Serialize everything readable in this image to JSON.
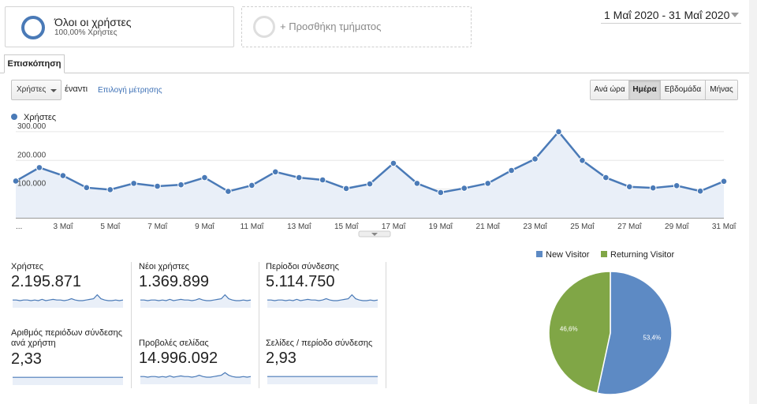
{
  "segments": {
    "active": {
      "title": "Όλοι οι χρήστες",
      "subtitle": "100,00% Χρήστες"
    },
    "add_label": "+ Προσθήκη τμήματος"
  },
  "date_range": "1 Μαΐ 2020 - 31 Μαΐ 2020",
  "tabs": [
    {
      "label": "Επισκόπηση"
    }
  ],
  "controls": {
    "metric_select": "Χρήστες",
    "versus": "έναντι",
    "pick_metric": "Επιλογή μέτρησης",
    "granularity": [
      {
        "label": "Ανά ώρα",
        "active": false
      },
      {
        "label": "Ημέρα",
        "active": true
      },
      {
        "label": "Εβδομάδα",
        "active": false
      },
      {
        "label": "Μήνας",
        "active": false
      }
    ]
  },
  "colors": {
    "accent": "#4a7ab7",
    "line": "#4a7ab7",
    "area": "#e9eff8",
    "new_visitor": "#5d8ac4",
    "returning_visitor": "#80a646"
  },
  "chart_data": [
    {
      "type": "area",
      "legend": "Χρήστες",
      "ylim": [
        0,
        330000
      ],
      "y_ticks": [
        100000,
        200000,
        300000
      ],
      "y_tick_labels": [
        "100.000",
        "200.000",
        "300.000"
      ],
      "x": [
        "1 Μαΐ",
        "2 Μαΐ",
        "3 Μαΐ",
        "4 Μαΐ",
        "5 Μαΐ",
        "6 Μαΐ",
        "7 Μαΐ",
        "8 Μαΐ",
        "9 Μαΐ",
        "10 Μαΐ",
        "11 Μαΐ",
        "12 Μαΐ",
        "13 Μαΐ",
        "14 Μαΐ",
        "15 Μαΐ",
        "16 Μαΐ",
        "17 Μαΐ",
        "18 Μαΐ",
        "19 Μαΐ",
        "20 Μαΐ",
        "21 Μαΐ",
        "22 Μαΐ",
        "23 Μαΐ",
        "24 Μαΐ",
        "25 Μαΐ",
        "26 Μαΐ",
        "27 Μαΐ",
        "28 Μαΐ",
        "29 Μαΐ",
        "30 Μαΐ",
        "31 Μαΐ"
      ],
      "x_tick_labels": [
        "...",
        "3 Μαΐ",
        "5 Μαΐ",
        "7 Μαΐ",
        "9 Μαΐ",
        "11 Μαΐ",
        "13 Μαΐ",
        "15 Μαΐ",
        "17 Μαΐ",
        "19 Μαΐ",
        "21 Μαΐ",
        "23 Μαΐ",
        "25 Μαΐ",
        "27 Μαΐ",
        "29 Μαΐ",
        "31 Μαΐ"
      ],
      "x_tick_index": [
        0,
        2,
        4,
        6,
        8,
        10,
        12,
        14,
        16,
        18,
        20,
        22,
        24,
        26,
        28,
        30
      ],
      "series": [
        {
          "name": "Χρήστες",
          "values": [
            128000,
            175000,
            147000,
            105000,
            98000,
            120000,
            110000,
            115000,
            140000,
            92000,
            113000,
            160000,
            140000,
            132000,
            102000,
            118000,
            190000,
            120000,
            88000,
            103000,
            120000,
            165000,
            205000,
            300000,
            200000,
            140000,
            108000,
            104000,
            112000,
            93000,
            127000
          ]
        }
      ]
    },
    {
      "type": "pie",
      "legend_position": "top",
      "slices": [
        {
          "label": "New Visitor",
          "value": 53.4,
          "value_label": "53,4%"
        },
        {
          "label": "Returning Visitor",
          "value": 46.6,
          "value_label": "46,6%"
        }
      ]
    }
  ],
  "scorecards": [
    {
      "label": "Χρήστες",
      "value": "2.195.871",
      "spark": [
        12,
        12,
        11,
        12,
        12,
        11,
        12,
        11,
        13,
        11,
        12,
        13,
        12,
        12,
        11,
        12,
        14,
        12,
        11,
        11,
        12,
        13,
        14,
        20,
        14,
        12,
        11,
        11,
        12,
        11,
        12
      ]
    },
    {
      "label": "Νέοι χρήστες",
      "value": "1.369.899",
      "spark": [
        12,
        12,
        11,
        12,
        12,
        11,
        12,
        11,
        13,
        11,
        12,
        13,
        12,
        12,
        11,
        12,
        14,
        12,
        11,
        11,
        12,
        13,
        14,
        20,
        14,
        12,
        11,
        11,
        12,
        11,
        12
      ]
    },
    {
      "label": "Περίοδοι σύνδεσης",
      "value": "5.114.750",
      "spark": [
        12,
        12,
        11,
        12,
        12,
        11,
        12,
        11,
        13,
        11,
        12,
        13,
        12,
        12,
        11,
        12,
        14,
        12,
        11,
        11,
        12,
        13,
        14,
        20,
        14,
        12,
        11,
        11,
        12,
        11,
        12
      ]
    },
    {
      "label": "Αριθμός περιόδων σύνδεσης ανά χρήστη",
      "value": "2,33",
      "spark": [
        12,
        12,
        12,
        12,
        12,
        12,
        12,
        12,
        12,
        12,
        12,
        12,
        12,
        12,
        12,
        12,
        12,
        12,
        12,
        12,
        12,
        12,
        12,
        12,
        12,
        12,
        12,
        12,
        12,
        12,
        12
      ]
    },
    {
      "label": "Προβολές σελίδας",
      "value": "14.996.092",
      "spark": [
        12,
        12,
        11,
        12,
        12,
        11,
        12,
        11,
        13,
        11,
        12,
        13,
        12,
        12,
        11,
        12,
        14,
        12,
        11,
        11,
        12,
        13,
        14,
        18,
        14,
        12,
        11,
        11,
        12,
        11,
        12
      ]
    },
    {
      "label": "Σελίδες / περίοδο σύνδεσης",
      "value": "2,93",
      "spark": [
        12,
        12,
        12,
        12,
        12,
        12,
        12,
        12,
        12,
        12,
        12,
        12,
        12,
        12,
        12,
        12,
        12,
        12,
        12,
        12,
        12,
        12,
        12,
        12,
        12,
        12,
        12,
        12,
        12,
        12,
        12
      ]
    }
  ]
}
